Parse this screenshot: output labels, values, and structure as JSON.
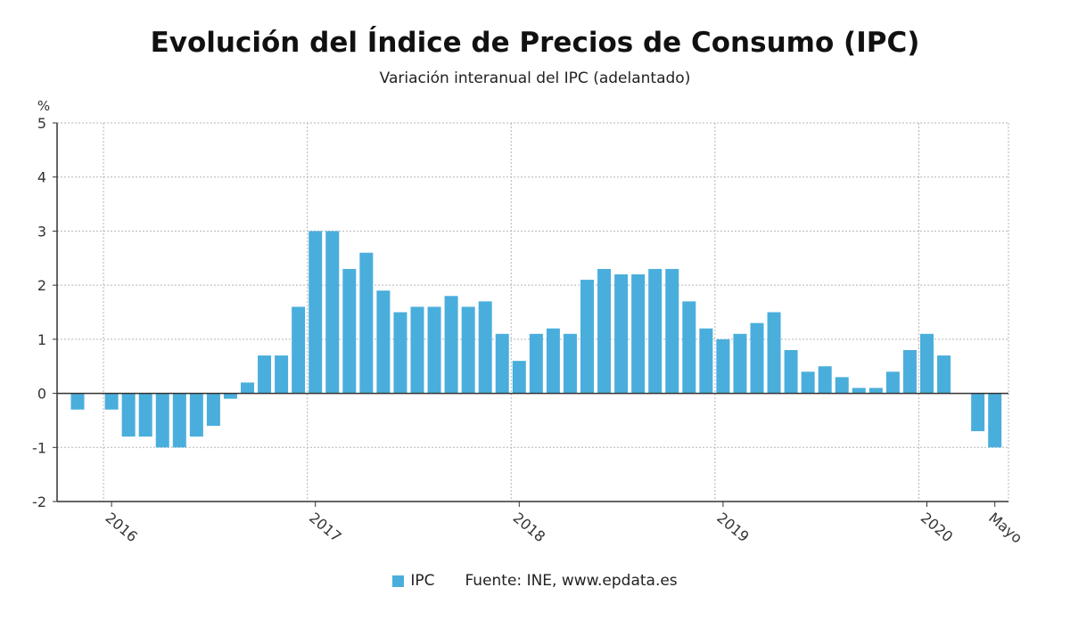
{
  "chart_data": {
    "type": "bar",
    "title": "Evolución del Índice de Precios de Consumo (IPC)",
    "subtitle": "Variación interanual del IPC (adelantado)",
    "ylabel": "%",
    "ylim": [
      -2,
      5
    ],
    "yticks": [
      "5",
      "4",
      "3",
      "2",
      "1",
      "0",
      "-1",
      "-2"
    ],
    "grid": true,
    "legend_position": "bottom",
    "bar_color": "#4aaedc",
    "x_tick_labels": [
      {
        "label": "2016",
        "index": 2
      },
      {
        "label": "2017",
        "index": 14
      },
      {
        "label": "2018",
        "index": 26
      },
      {
        "label": "2019",
        "index": 38
      },
      {
        "label": "2020",
        "index": 50
      },
      {
        "label": "Mayo",
        "index": 54
      }
    ],
    "series": [
      {
        "name": "IPC",
        "values": [
          -0.3,
          0.0,
          -0.3,
          -0.8,
          -0.8,
          -1.0,
          -1.0,
          -0.8,
          -0.6,
          -0.1,
          0.2,
          0.7,
          0.7,
          1.6,
          3.0,
          3.0,
          2.3,
          2.6,
          1.9,
          1.5,
          1.6,
          1.6,
          1.8,
          1.6,
          1.7,
          1.1,
          0.6,
          1.1,
          1.2,
          1.1,
          2.1,
          2.3,
          2.2,
          2.2,
          2.3,
          2.3,
          1.7,
          1.2,
          1.0,
          1.1,
          1.3,
          1.5,
          0.8,
          0.4,
          0.5,
          0.3,
          0.1,
          0.1,
          0.4,
          0.8,
          1.1,
          0.7,
          0.0,
          -0.7,
          -1.0
        ]
      }
    ],
    "source_text": "Fuente: INE, www.epdata.es"
  }
}
